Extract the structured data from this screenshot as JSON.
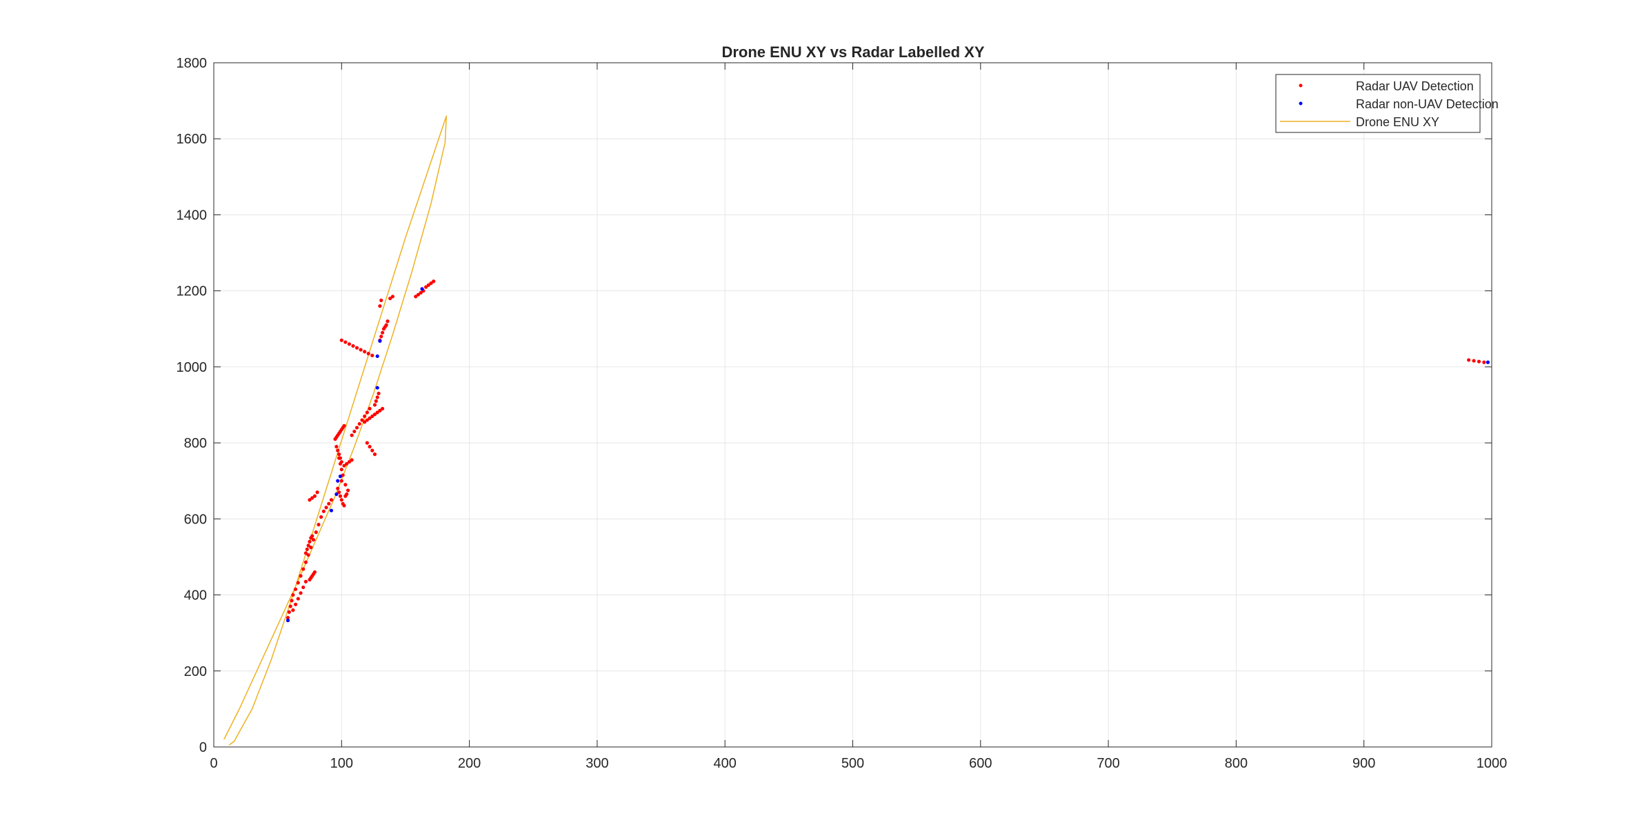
{
  "chart_data": {
    "type": "scatter",
    "title": "Drone ENU XY vs Radar Labelled XY",
    "xlabel": "",
    "ylabel": "",
    "xlim": [
      0,
      1000
    ],
    "ylim": [
      0,
      1800
    ],
    "xticks": [
      0,
      100,
      200,
      300,
      400,
      500,
      600,
      700,
      800,
      900,
      1000
    ],
    "yticks": [
      0,
      200,
      400,
      600,
      800,
      1000,
      1200,
      1400,
      1600,
      1800
    ],
    "grid": true,
    "legend_position": "top-right",
    "series": [
      {
        "name": "Radar UAV Detection",
        "kind": "scatter",
        "color": "#ff0000",
        "x": [
          58,
          59,
          60,
          61,
          62,
          64,
          66,
          68,
          70,
          72,
          74,
          76,
          78,
          80,
          82,
          84,
          86,
          88,
          90,
          92,
          72,
          73,
          74,
          75,
          76,
          77,
          75,
          76,
          77,
          78,
          79,
          75,
          77,
          79,
          81,
          62,
          64,
          66,
          68,
          70,
          72,
          95,
          96,
          97,
          98,
          99,
          100,
          101,
          102,
          98,
          99,
          100,
          101,
          100,
          103,
          105,
          96,
          97,
          98,
          99,
          100,
          102,
          104,
          106,
          108,
          97,
          98,
          99,
          100,
          101,
          102,
          103,
          104,
          108,
          110,
          112,
          114,
          116,
          118,
          120,
          122,
          120,
          122,
          124,
          126,
          118,
          120,
          122,
          124,
          126,
          128,
          130,
          132,
          126,
          127,
          128,
          129,
          100,
          103,
          106,
          109,
          112,
          115,
          118,
          121,
          124,
          130,
          131,
          132,
          133,
          134,
          135,
          136,
          130,
          131,
          138,
          140,
          158,
          160,
          162,
          164,
          166,
          168,
          170,
          172,
          982,
          986,
          990,
          994
        ],
        "y": [
          340,
          355,
          370,
          385,
          400,
          415,
          432,
          450,
          468,
          486,
          505,
          525,
          545,
          565,
          585,
          605,
          620,
          630,
          640,
          650,
          510,
          520,
          530,
          540,
          550,
          555,
          440,
          445,
          450,
          455,
          460,
          650,
          655,
          660,
          670,
          360,
          375,
          390,
          405,
          420,
          435,
          810,
          815,
          820,
          825,
          830,
          835,
          840,
          845,
          760,
          745,
          730,
          715,
          700,
          690,
          675,
          790,
          780,
          770,
          760,
          750,
          740,
          745,
          750,
          755,
          680,
          670,
          660,
          650,
          640,
          635,
          660,
          665,
          820,
          830,
          840,
          850,
          860,
          870,
          880,
          890,
          800,
          790,
          780,
          770,
          855,
          860,
          865,
          870,
          875,
          880,
          885,
          890,
          900,
          910,
          920,
          930,
          1070,
          1065,
          1060,
          1055,
          1050,
          1045,
          1040,
          1035,
          1030,
          1070,
          1080,
          1090,
          1100,
          1105,
          1110,
          1120,
          1160,
          1175,
          1180,
          1185,
          1185,
          1190,
          1195,
          1200,
          1210,
          1215,
          1220,
          1225,
          1018,
          1016,
          1014,
          1012
        ]
      },
      {
        "name": "Radar non-UAV Detection",
        "kind": "scatter",
        "color": "#0000ff",
        "x": [
          58,
          92,
          96,
          97,
          99,
          128,
          128,
          130,
          163,
          997
        ],
        "y": [
          333,
          622,
          665,
          700,
          712,
          1028,
          945,
          1068,
          1205,
          1012
        ]
      },
      {
        "name": "Drone ENU XY",
        "kind": "line",
        "color": "#edb120",
        "x": [
          8,
          20,
          35,
          50,
          65,
          80,
          95,
          110,
          125,
          140,
          155,
          170,
          181,
          182,
          176,
          165,
          150,
          135,
          120,
          105,
          90,
          75,
          60,
          45,
          30,
          20,
          16,
          12
        ],
        "y": [
          20,
          100,
          210,
          320,
          430,
          545,
          660,
          790,
          930,
          1085,
          1250,
          1430,
          1590,
          1660,
          1600,
          1490,
          1340,
          1180,
          1020,
          860,
          700,
          540,
          380,
          230,
          100,
          40,
          15,
          5
        ]
      }
    ]
  }
}
